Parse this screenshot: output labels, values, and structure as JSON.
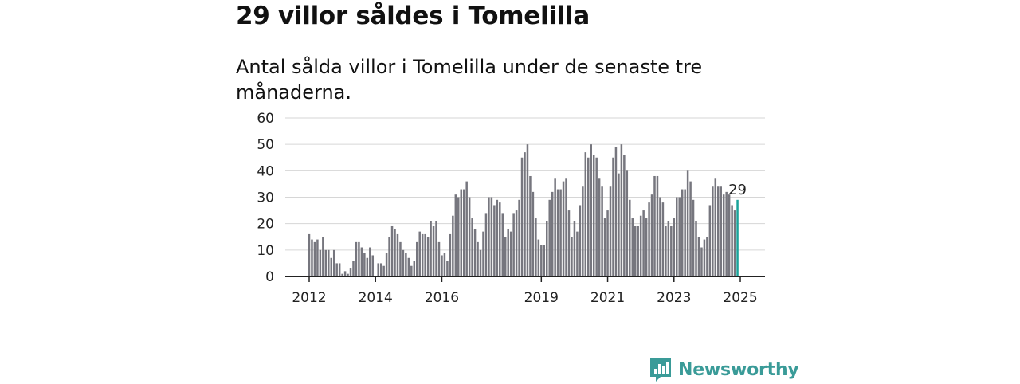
{
  "title": "29 villor såldes i Tomelilla",
  "subtitle": "Antal sålda villor i Tomelilla under de senaste tre månaderna.",
  "brand": {
    "name": "Newsworthy",
    "icon": "newsworthy-logo-icon",
    "color": "#3a9b98"
  },
  "chart_data": {
    "type": "bar",
    "title": "29 villor såldes i Tomelilla",
    "subtitle": "Antal sålda villor i Tomelilla under de senaste tre månaderna.",
    "xlabel": "",
    "ylabel": "",
    "ylim": [
      0,
      60
    ],
    "yticks": [
      0,
      10,
      20,
      30,
      40,
      50,
      60
    ],
    "xticks": [
      "2012",
      "2014",
      "2016",
      "2019",
      "2021",
      "2023",
      "2025"
    ],
    "grid": true,
    "x_start": "2012-01",
    "x_end": "2025-03",
    "bar_color": "#76767e",
    "highlight_color": "#1aa39a",
    "highlight_label": "29",
    "values": [
      16,
      14,
      13,
      14,
      10,
      15,
      10,
      10,
      7,
      10,
      5,
      5,
      1,
      2,
      1,
      3,
      6,
      13,
      13,
      11,
      9,
      7,
      11,
      8,
      0,
      5,
      5,
      4,
      9,
      15,
      19,
      18,
      16,
      13,
      10,
      9,
      7,
      4,
      6,
      13,
      17,
      16,
      16,
      15,
      21,
      19,
      21,
      13,
      8,
      9,
      6,
      16,
      23,
      31,
      30,
      33,
      33,
      36,
      30,
      22,
      18,
      13,
      10,
      17,
      24,
      30,
      30,
      27,
      29,
      28,
      24,
      15,
      18,
      17,
      24,
      25,
      29,
      45,
      47,
      50,
      38,
      32,
      22,
      14,
      12,
      12,
      21,
      29,
      32,
      37,
      33,
      33,
      36,
      37,
      25,
      15,
      21,
      17,
      27,
      34,
      47,
      45,
      50,
      46,
      45,
      37,
      34,
      22,
      25,
      34,
      45,
      49,
      39,
      50,
      46,
      40,
      29,
      22,
      19,
      19,
      23,
      25,
      22,
      28,
      31,
      38,
      38,
      30,
      28,
      19,
      21,
      19,
      22,
      30,
      30,
      33,
      33,
      40,
      36,
      29,
      21,
      15,
      11,
      14,
      15,
      27,
      34,
      37,
      34,
      34,
      31,
      32,
      31,
      27,
      25,
      29
    ]
  }
}
